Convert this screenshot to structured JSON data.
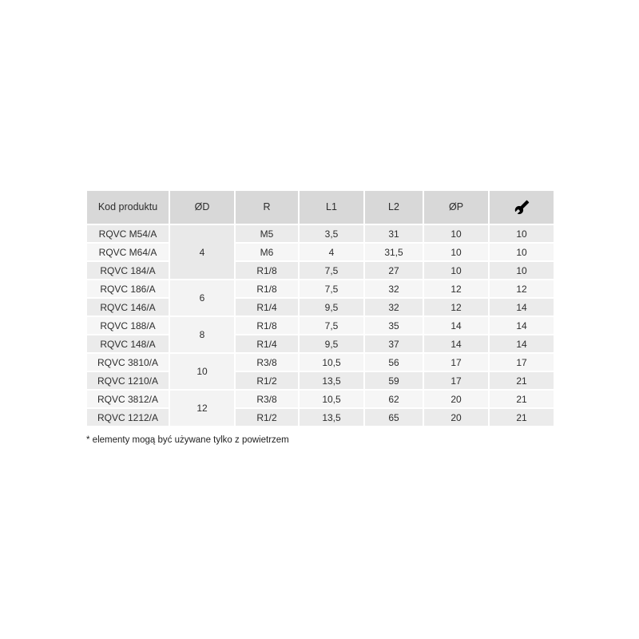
{
  "table": {
    "headers": {
      "code": "Kod produktu",
      "od": "ØD",
      "r": "R",
      "l1": "L1",
      "l2": "L2",
      "op": "ØP",
      "wrench_icon": "wrench-icon"
    },
    "groups": [
      {
        "od": "4",
        "rows": [
          {
            "code": "RQVC M54/A",
            "r": "M5",
            "l1": "3,5",
            "l2": "31",
            "op": "10",
            "wrench": "10"
          },
          {
            "code": "RQVC M64/A",
            "r": "M6",
            "l1": "4",
            "l2": "31,5",
            "op": "10",
            "wrench": "10"
          },
          {
            "code": "RQVC 184/A",
            "r": "R1/8",
            "l1": "7,5",
            "l2": "27",
            "op": "10",
            "wrench": "10"
          }
        ]
      },
      {
        "od": "6",
        "rows": [
          {
            "code": "RQVC 186/A",
            "r": "R1/8",
            "l1": "7,5",
            "l2": "32",
            "op": "12",
            "wrench": "12"
          },
          {
            "code": "RQVC 146/A",
            "r": "R1/4",
            "l1": "9,5",
            "l2": "32",
            "op": "12",
            "wrench": "14"
          }
        ]
      },
      {
        "od": "8",
        "rows": [
          {
            "code": "RQVC 188/A",
            "r": "R1/8",
            "l1": "7,5",
            "l2": "35",
            "op": "14",
            "wrench": "14"
          },
          {
            "code": "RQVC 148/A",
            "r": "R1/4",
            "l1": "9,5",
            "l2": "37",
            "op": "14",
            "wrench": "14"
          }
        ]
      },
      {
        "od": "10",
        "rows": [
          {
            "code": "RQVC 3810/A",
            "r": "R3/8",
            "l1": "10,5",
            "l2": "56",
            "op": "17",
            "wrench": "17"
          },
          {
            "code": "RQVC 1210/A",
            "r": "R1/2",
            "l1": "13,5",
            "l2": "59",
            "op": "17",
            "wrench": "21"
          }
        ]
      },
      {
        "od": "12",
        "rows": [
          {
            "code": "RQVC 3812/A",
            "r": "R3/8",
            "l1": "10,5",
            "l2": "62",
            "op": "20",
            "wrench": "21"
          },
          {
            "code": "RQVC 1212/A",
            "r": "R1/2",
            "l1": "13,5",
            "l2": "65",
            "op": "20",
            "wrench": "21"
          }
        ]
      }
    ]
  },
  "footnote": "* elementy mogą być używane tylko z powietrzem",
  "colors": {
    "header_bg": "#d8d8d8",
    "row_dark_bg": "#ebebeb",
    "row_light_bg": "#f6f6f6",
    "merged_dark_bg": "#e9e9e9",
    "merged_light_bg": "#f3f3f3",
    "text": "#2d2d2d",
    "icon": "#000000"
  }
}
